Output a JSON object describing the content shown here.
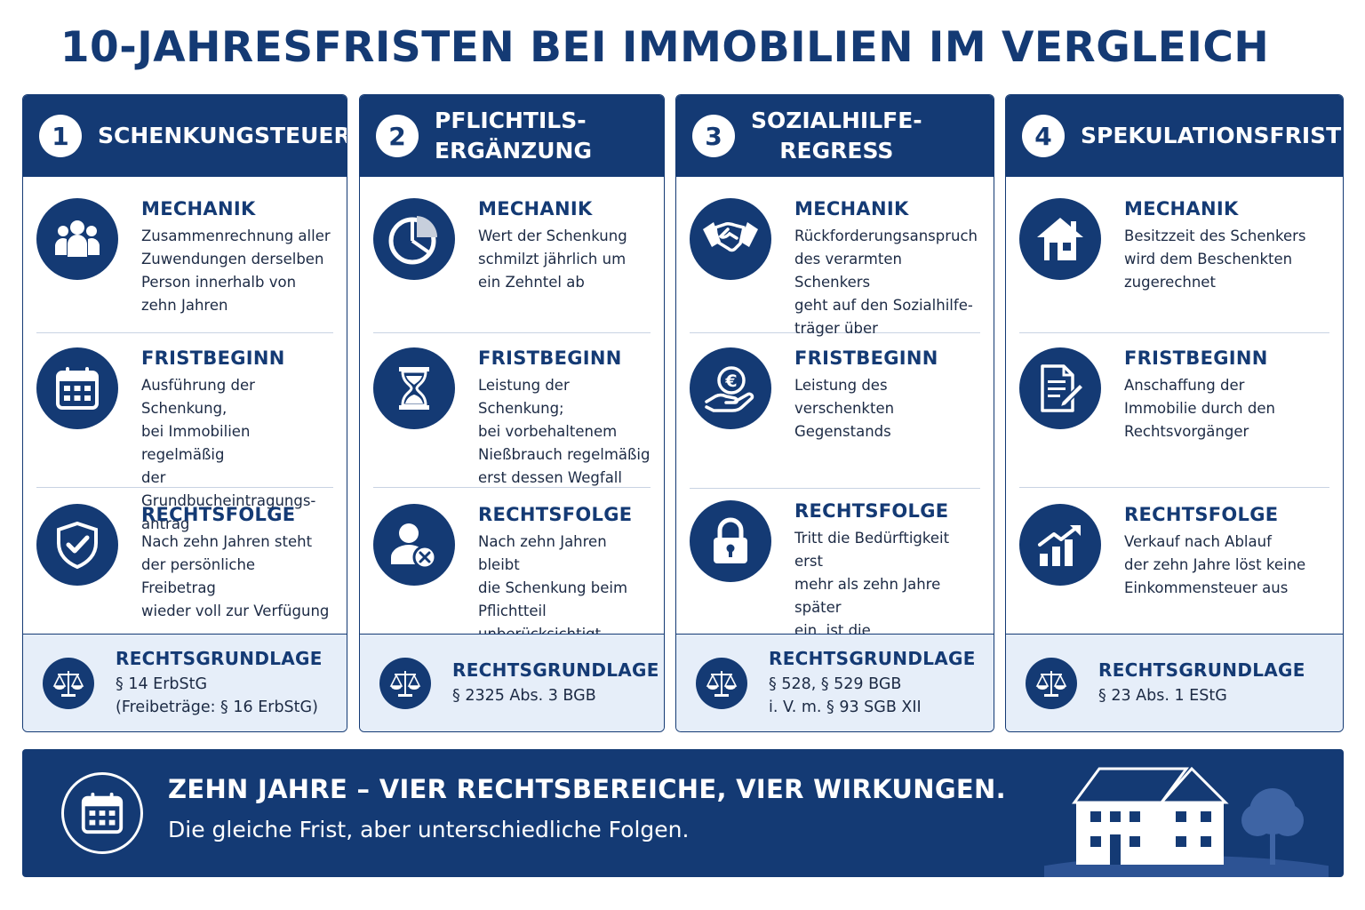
{
  "title": "10-JAHRESFRISTEN BEI IMMOBILIEN IM VERGLEICH",
  "labels": {
    "mechanik": "MECHANIK",
    "fristbeginn": "FRISTBEGINN",
    "rechtsfolge": "RECHTSFOLGE",
    "rechtsgrundlage": "RECHTSGRUNDLAGE"
  },
  "columns": [
    {
      "number": "1",
      "title": "SCHENKUNGSTEUER",
      "mechanik": "Zusammenrechnung aller\nZuwendungen derselben\nPerson innerhalb von\nzehn Jahren",
      "mechanik_icon": "people-group-icon",
      "fristbeginn": "Ausführung der Schenkung,\nbei Immobilien regelmäßig\nder Grundbucheintragungs-\nantrag",
      "fristbeginn_icon": "calendar-icon",
      "rechtsfolge": "Nach zehn Jahren steht\nder persönliche Freibetrag\nwieder voll zur Verfügung",
      "rechtsfolge_icon": "shield-check-icon",
      "rechtsgrundlage": "§ 14 ErbStG\n(Freibeträge: § 16 ErbStG)"
    },
    {
      "number": "2",
      "title": "PFLICHTILS-\nERGÄNZUNG",
      "mechanik": "Wert der Schenkung\nschmilzt jährlich um\nein Zehntel ab",
      "mechanik_icon": "pie-chart-icon",
      "fristbeginn": "Leistung der Schenkung;\nbei vorbehaltenem\nNießbrauch regelmäßig\nerst dessen Wegfall",
      "fristbeginn_icon": "hourglass-icon",
      "rechtsfolge": "Nach zehn Jahren bleibt\ndie Schenkung beim\nPflichtteil unberücksichtigt",
      "rechtsfolge_icon": "person-x-icon",
      "rechtsgrundlage": "§ 2325 Abs. 3 BGB"
    },
    {
      "number": "3",
      "title": "SOZIALHILFE-\nREGRESS",
      "mechanik": "Rückforderungsanspruch\ndes verarmten Schenkers\ngeht auf den Sozialhilfe-\nträger über",
      "mechanik_icon": "handshake-icon",
      "fristbeginn": "Leistung des verschenkten\nGegenstands",
      "fristbeginn_icon": "euro-hand-icon",
      "rechtsfolge": "Tritt die Bedürftigkeit erst\nmehr als zehn Jahre später\nein, ist die Rückforderung\nausgeschlossen",
      "rechtsfolge_icon": "lock-icon",
      "rechtsgrundlage": "§ 528, § 529 BGB\ni. V. m. § 93 SGB XII"
    },
    {
      "number": "4",
      "title": "SPEKULATIONSFRIST",
      "mechanik": "Besitzzeit des Schenkers\nwird dem Beschenkten\nzugerechnet",
      "mechanik_icon": "house-icon",
      "fristbeginn": "Anschaffung der\nImmobilie durch den\nRechtsvorgänger",
      "fristbeginn_icon": "document-pen-icon",
      "rechtsfolge": "Verkauf nach Ablauf\nder zehn Jahre löst keine\nEinkommensteuer aus",
      "rechtsfolge_icon": "growth-chart-icon",
      "rechtsgrundlage": "§ 23 Abs. 1 EStG"
    }
  ],
  "footer": {
    "headline": "ZEHN JAHRE – VIER RECHTSBEREICHE, VIER WIRKUNGEN.",
    "subline": "Die gleiche Frist, aber unterschiedliche Folgen."
  },
  "colors": {
    "primary": "#143a74",
    "law_box_bg": "#e6eef9",
    "separator": "#c9d3e3"
  }
}
